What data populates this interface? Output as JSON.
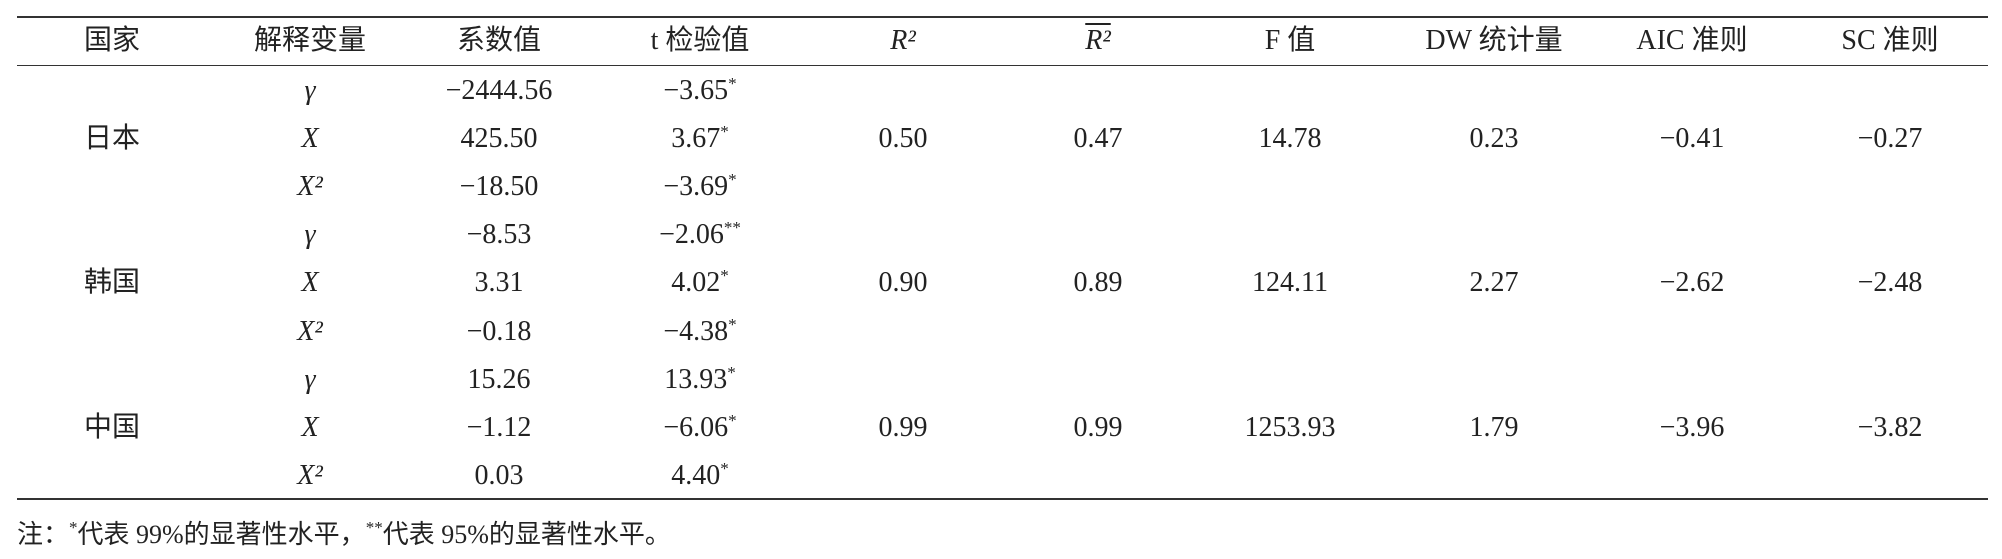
{
  "table": {
    "header": [
      "国家",
      "解释变量",
      "系数值",
      "t 检验值",
      "R²",
      "R²",
      "F 值",
      "DW 统计量",
      "AIC 准则",
      "SC 准则"
    ],
    "groups": [
      {
        "country": "日本",
        "rows": [
          {
            "var": "γ",
            "coef": "−2444.56",
            "t": "−3.65",
            "sig": "*"
          },
          {
            "var": "X",
            "coef": "425.50",
            "t": "3.67",
            "sig": "*"
          },
          {
            "var": "X²",
            "coef": "−18.50",
            "t": "−3.69",
            "sig": "*"
          }
        ],
        "stats": [
          "0.50",
          "0.47",
          "14.78",
          "0.23",
          "−0.41",
          "−0.27"
        ]
      },
      {
        "country": "韩国",
        "rows": [
          {
            "var": "γ",
            "coef": "−8.53",
            "t": "−2.06",
            "sig": "**"
          },
          {
            "var": "X",
            "coef": "3.31",
            "t": "4.02",
            "sig": "*"
          },
          {
            "var": "X²",
            "coef": "−0.18",
            "t": "−4.38",
            "sig": "*"
          }
        ],
        "stats": [
          "0.90",
          "0.89",
          "124.11",
          "2.27",
          "−2.62",
          "−2.48"
        ]
      },
      {
        "country": "中国",
        "rows": [
          {
            "var": "γ",
            "coef": "15.26",
            "t": "13.93",
            "sig": "*"
          },
          {
            "var": "X",
            "coef": "−1.12",
            "t": "−6.06",
            "sig": "*"
          },
          {
            "var": "X²",
            "coef": "0.03",
            "t": "4.40",
            "sig": "*"
          }
        ],
        "stats": [
          "0.99",
          "0.99",
          "1253.93",
          "1.79",
          "−3.96",
          "−3.82"
        ]
      }
    ]
  },
  "note": {
    "prefix": "注：",
    "items": [
      {
        "mark": "*",
        "text": "代表 99%的显著性水平，"
      },
      {
        "mark": "**",
        "text": "代表 95%的显著性水平。"
      }
    ]
  }
}
